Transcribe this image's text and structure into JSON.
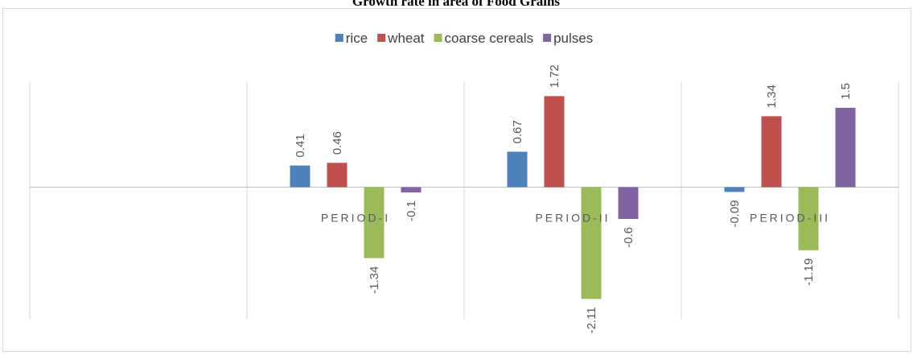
{
  "chart_data": {
    "type": "bar",
    "title": "Growth rate in area of Food Grains",
    "categories": [
      null,
      "PERIOD-I",
      "PERIOD-II",
      "PERIOD-III"
    ],
    "series": [
      {
        "name": "rice",
        "color": "#4f81bd",
        "values": [
          null,
          0.41,
          0.67,
          -0.09
        ]
      },
      {
        "name": "wheat",
        "color": "#c0504d",
        "values": [
          null,
          0.46,
          1.72,
          1.34
        ]
      },
      {
        "name": "coarse cereals",
        "color": "#9bbb59",
        "values": [
          null,
          -1.34,
          -2.11,
          -1.19
        ]
      },
      {
        "name": "pulses",
        "color": "#8064a2",
        "values": [
          null,
          -0.1,
          -0.6,
          1.5
        ]
      }
    ],
    "ylim": [
      -2.5,
      2
    ],
    "legend": "top"
  }
}
